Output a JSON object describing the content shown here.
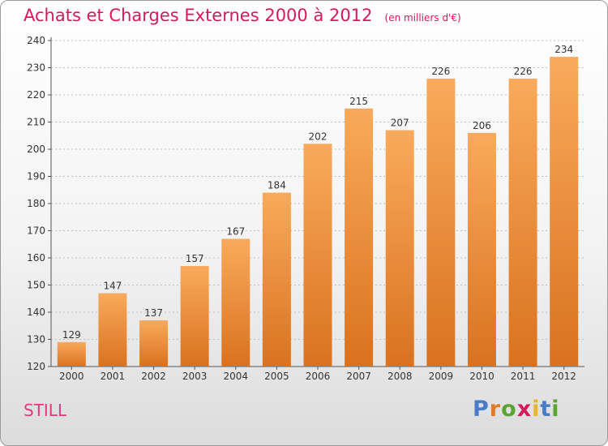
{
  "header": {
    "title": "Achats et Charges Externes 2000 à 2012",
    "subtitle": "(en milliers d'€)"
  },
  "footer": {
    "commune": "STILL",
    "logo_text": "Proxiti"
  },
  "colors": {
    "title": "#d6185c",
    "bar_light": "#f9aa5c",
    "bar_dark": "#d9721f",
    "grid": "#bfbfbf",
    "logo_letters": [
      "#4a7bc8",
      "#e07b23",
      "#5aa431",
      "#d6185c",
      "#e8b52a",
      "#4a7bc8",
      "#5aa431"
    ]
  },
  "chart_data": {
    "type": "bar",
    "categories": [
      "2000",
      "2001",
      "2002",
      "2003",
      "2004",
      "2005",
      "2006",
      "2007",
      "2008",
      "2009",
      "2010",
      "2011",
      "2012"
    ],
    "values": [
      129,
      147,
      137,
      157,
      167,
      184,
      202,
      215,
      207,
      226,
      206,
      226,
      234
    ],
    "ylim": [
      120,
      240
    ],
    "yticks": [
      120,
      130,
      140,
      150,
      160,
      170,
      180,
      190,
      200,
      210,
      220,
      230,
      240
    ],
    "grid": true,
    "data_labels": true
  }
}
